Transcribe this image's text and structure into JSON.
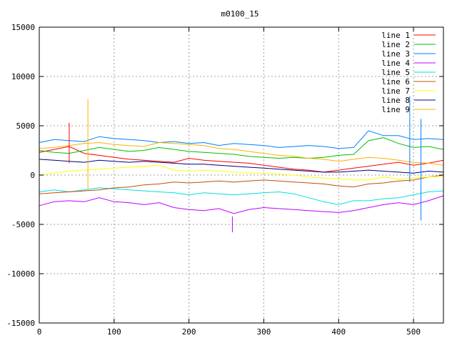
{
  "chart_data": {
    "type": "line",
    "title": "m0100_15",
    "xlabel": "",
    "ylabel": "",
    "xlim": [
      0,
      540
    ],
    "ylim": [
      -15000,
      15000
    ],
    "grid": true,
    "legend_position": "top-right",
    "x_ticks": [
      0,
      100,
      200,
      300,
      400,
      500
    ],
    "x_tick_labels": [
      "0",
      "100",
      "200",
      "300",
      "400",
      "500"
    ],
    "y_ticks": [
      -15000,
      -10000,
      -5000,
      0,
      5000,
      10000,
      15000
    ],
    "y_tick_labels": [
      "-15000",
      "-10000",
      "-5000",
      "0",
      "5000",
      "10000",
      "15000"
    ],
    "x": [
      0,
      20,
      40,
      60,
      80,
      100,
      120,
      140,
      160,
      180,
      200,
      220,
      240,
      260,
      280,
      300,
      320,
      340,
      360,
      380,
      400,
      420,
      440,
      460,
      480,
      500,
      520,
      540
    ],
    "series": [
      {
        "name": "line 1",
        "color": "#ff0000",
        "values": [
          2300,
          2600,
          2900,
          2200,
          2000,
          1800,
          1600,
          1500,
          1400,
          1300,
          1700,
          1500,
          1400,
          1300,
          1200,
          1000,
          800,
          600,
          500,
          300,
          500,
          700,
          900,
          1100,
          1300,
          1000,
          1200,
          1500
        ]
      },
      {
        "name": "line 2",
        "color": "#00c000",
        "values": [
          2500,
          2300,
          2200,
          2500,
          2800,
          2600,
          2400,
          2500,
          2800,
          2600,
          2400,
          2300,
          2200,
          2100,
          1900,
          1800,
          1700,
          1800,
          1700,
          1800,
          2000,
          2100,
          3500,
          3800,
          3200,
          2800,
          2900,
          2600
        ]
      },
      {
        "name": "line 3",
        "color": "#0080ff",
        "values": [
          3300,
          3600,
          3500,
          3400,
          3900,
          3700,
          3600,
          3500,
          3300,
          3400,
          3200,
          3300,
          3000,
          3200,
          3100,
          3000,
          2800,
          2900,
          3000,
          2900,
          2700,
          2800,
          4500,
          4000,
          4000,
          3600,
          3700,
          3600
        ]
      },
      {
        "name": "line 4",
        "color": "#c000ff",
        "values": [
          -3100,
          -2700,
          -2600,
          -2700,
          -2300,
          -2700,
          -2800,
          -3000,
          -2800,
          -3300,
          -3500,
          -3600,
          -3400,
          -3900,
          -3500,
          -3300,
          -3400,
          -3500,
          -3600,
          -3700,
          -3800,
          -3600,
          -3300,
          -3000,
          -2800,
          -3000,
          -2600,
          -2100
        ]
      },
      {
        "name": "line 5",
        "color": "#00e0e0",
        "values": [
          -1700,
          -1500,
          -1700,
          -1500,
          -1300,
          -1400,
          -1500,
          -1600,
          -1700,
          -1800,
          -2000,
          -1800,
          -1900,
          -2000,
          -1900,
          -1800,
          -1700,
          -1900,
          -2300,
          -2700,
          -3000,
          -2600,
          -2600,
          -2400,
          -2300,
          -2000,
          -1700,
          -1600
        ]
      },
      {
        "name": "line 6",
        "color": "#c05000",
        "values": [
          -1900,
          -1800,
          -1700,
          -1600,
          -1500,
          -1300,
          -1200,
          -1000,
          -900,
          -700,
          -800,
          -700,
          -600,
          -700,
          -600,
          -500,
          -600,
          -700,
          -800,
          -900,
          -1100,
          -1200,
          -900,
          -800,
          -600,
          -500,
          -200,
          0
        ]
      },
      {
        "name": "line 7",
        "color": "#ffff00",
        "values": [
          0,
          200,
          400,
          500,
          600,
          700,
          800,
          900,
          1000,
          500,
          400,
          500,
          400,
          300,
          200,
          200,
          100,
          0,
          -200,
          -300,
          -400,
          -500,
          -500,
          -200,
          -400,
          -300,
          -200,
          -100
        ]
      },
      {
        "name": "line 8",
        "color": "#000080",
        "values": [
          1600,
          1500,
          1400,
          1300,
          1500,
          1400,
          1300,
          1400,
          1300,
          1200,
          1100,
          1100,
          1000,
          900,
          800,
          700,
          600,
          500,
          400,
          300,
          300,
          400,
          500,
          400,
          300,
          200,
          400,
          300
        ]
      },
      {
        "name": "line 9",
        "color": "#ffb000",
        "values": [
          2700,
          2800,
          3000,
          3200,
          3300,
          3100,
          3000,
          2900,
          3300,
          3200,
          3100,
          3000,
          2700,
          2600,
          2400,
          2200,
          2000,
          1900,
          1700,
          1600,
          1400,
          1600,
          1800,
          1700,
          1500,
          1300,
          1200,
          1000
        ]
      }
    ],
    "spikes": [
      {
        "series": "line 1",
        "x": 40,
        "values": [
          5300,
          1200
        ]
      },
      {
        "series": "line 9",
        "x": 65,
        "values": [
          7700,
          -1400
        ]
      },
      {
        "series": "line 4",
        "x": 258,
        "values": [
          -5800,
          -4200
        ]
      },
      {
        "series": "line 3",
        "x": 495,
        "values": [
          8000,
          -700
        ]
      },
      {
        "series": "line 3",
        "x": 510,
        "values": [
          5700,
          -4600
        ]
      }
    ]
  }
}
